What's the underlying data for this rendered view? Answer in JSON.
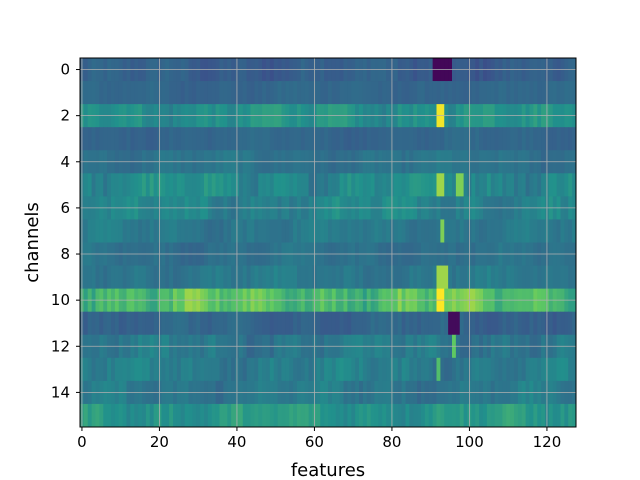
{
  "chart_data": {
    "type": "heatmap",
    "colormap": "viridis",
    "colormap_stops": [
      "#440154",
      "#3b528b",
      "#21918c",
      "#5ec962",
      "#fde725"
    ],
    "xlabel": "features",
    "ylabel": "channels",
    "xlim": [
      -0.5,
      127.5
    ],
    "ylim": [
      15.5,
      -0.5
    ],
    "n_features": 128,
    "n_channels": 16,
    "xticks": [
      0,
      20,
      40,
      60,
      80,
      100,
      120
    ],
    "yticks": [
      0,
      2,
      4,
      6,
      8,
      10,
      12,
      14
    ],
    "xtick_labels": [
      "0",
      "20",
      "40",
      "60",
      "80",
      "100",
      "120"
    ],
    "ytick_labels": [
      "0",
      "2",
      "4",
      "6",
      "8",
      "10",
      "12",
      "14"
    ],
    "grid": true,
    "channel_base_levels": [
      0.3,
      0.33,
      0.5,
      0.33,
      0.38,
      0.47,
      0.45,
      0.4,
      0.37,
      0.4,
      0.7,
      0.32,
      0.4,
      0.42,
      0.4,
      0.52
    ],
    "channel_variation": [
      0.05,
      0.03,
      0.08,
      0.03,
      0.04,
      0.09,
      0.08,
      0.05,
      0.04,
      0.05,
      0.14,
      0.05,
      0.07,
      0.07,
      0.06,
      0.08
    ],
    "hotspots": [
      {
        "channel": 0,
        "features": [
          91,
          92,
          93,
          94,
          95
        ],
        "value": 0.02
      },
      {
        "channel": 2,
        "features": [
          92,
          93
        ],
        "value": 0.98
      },
      {
        "channel": 5,
        "features": [
          92,
          93
        ],
        "value": 0.85
      },
      {
        "channel": 5,
        "features": [
          97,
          98
        ],
        "value": 0.8
      },
      {
        "channel": 7,
        "features": [
          93
        ],
        "value": 0.8
      },
      {
        "channel": 9,
        "features": [
          92,
          93,
          94
        ],
        "value": 0.85
      },
      {
        "channel": 10,
        "features": [
          92,
          93
        ],
        "value": 1.0
      },
      {
        "channel": 11,
        "features": [
          95,
          96,
          97
        ],
        "value": 0.03
      },
      {
        "channel": 12,
        "features": [
          96
        ],
        "value": 0.75
      },
      {
        "channel": 13,
        "features": [
          92
        ],
        "value": 0.7
      }
    ]
  }
}
